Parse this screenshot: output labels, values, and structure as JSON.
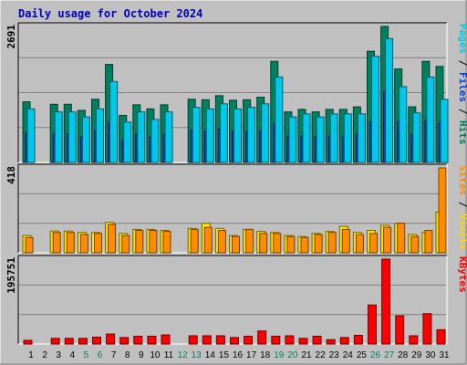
{
  "chart_data": {
    "type": "bar",
    "title": "Daily usage for October 2024",
    "days": [
      "1",
      "2",
      "3",
      "4",
      "5",
      "6",
      "7",
      "8",
      "9",
      "10",
      "11",
      "12",
      "13",
      "14",
      "15",
      "16",
      "17",
      "18",
      "19",
      "20",
      "21",
      "22",
      "23",
      "24",
      "25",
      "26",
      "27",
      "28",
      "29",
      "30",
      "31"
    ],
    "weekend_days": [
      "5",
      "6",
      "12",
      "13",
      "19",
      "20",
      "26",
      "27"
    ],
    "panels": [
      {
        "id": "top",
        "axis_max_label": "2691",
        "ylim": [
          0,
          2691
        ],
        "side_labels": [
          {
            "text": "Pages",
            "color": "#00c8e8"
          },
          {
            "text": " / ",
            "color": "#000000"
          },
          {
            "text": "Files",
            "color": "#0040d0"
          },
          {
            "text": " / ",
            "color": "#000000"
          },
          {
            "text": "Hits",
            "color": "#008060"
          }
        ],
        "series": [
          {
            "name": "Hits",
            "color": "#008060",
            "values": [
              1200,
              0,
              1150,
              1150,
              1030,
              1250,
              1940,
              930,
              1140,
              1060,
              1140,
              0,
              1250,
              1240,
              1320,
              1230,
              1240,
              1290,
              2000,
              1000,
              1050,
              1000,
              1050,
              1050,
              1100,
              2200,
              2691,
              1850,
              1100,
              2000,
              1900
            ]
          },
          {
            "name": "Files",
            "color": "#0040d0",
            "values": [
              580,
              0,
              560,
              560,
              500,
              640,
              800,
              450,
              560,
              500,
              560,
              0,
              640,
              620,
              660,
              620,
              620,
              640,
              760,
              520,
              520,
              500,
              520,
              520,
              560,
              800,
              1400,
              800,
              560,
              820,
              780
            ]
          },
          {
            "name": "Pages",
            "color": "#00c8e8",
            "values": [
              1060,
              0,
              1000,
              1000,
              900,
              1060,
              1600,
              800,
              1000,
              850,
              1000,
              0,
              1090,
              1060,
              1160,
              1060,
              1090,
              1160,
              1690,
              900,
              960,
              900,
              960,
              960,
              960,
              2100,
              2450,
              1500,
              980,
              1690,
              1250
            ]
          }
        ]
      },
      {
        "id": "mid",
        "axis_max_label": "418",
        "ylim": [
          0,
          418
        ],
        "side_labels": [
          {
            "text": "Sites",
            "color": "#ff8c00"
          },
          {
            "text": " / ",
            "color": "#000000"
          },
          {
            "text": "Visits",
            "color": "#ffd700"
          }
        ],
        "series": [
          {
            "name": "Visits",
            "color": "#ffe400",
            "values": [
              85,
              0,
              107,
              107,
              100,
              100,
              150,
              95,
              115,
              115,
              110,
              0,
              120,
              145,
              120,
              85,
              115,
              105,
              100,
              85,
              80,
              95,
              105,
              130,
              100,
              110,
              135,
              145,
              90,
              100,
              200
            ]
          },
          {
            "name": "Sites",
            "color": "#ff8c00",
            "values": [
              75,
              0,
              100,
              100,
              90,
              95,
              140,
              85,
              110,
              110,
              105,
              0,
              115,
              125,
              110,
              80,
              115,
              95,
              95,
              80,
              75,
              90,
              100,
              115,
              90,
              95,
              125,
              145,
              80,
              110,
              418
            ]
          }
        ]
      },
      {
        "id": "bottom",
        "axis_max_label": "195751",
        "ylim": [
          0,
          195751
        ],
        "side_labels": [
          {
            "text": "KBytes",
            "color": "#ff0000"
          }
        ],
        "series": [
          {
            "name": "KBytes",
            "color": "#ff0000",
            "values": [
              8500,
              0,
              13000,
              13000,
              13000,
              16000,
              23000,
              15000,
              18000,
              18000,
              21000,
              0,
              19000,
              19000,
              19000,
              15000,
              18000,
              30000,
              18000,
              19000,
              13000,
              18000,
              10000,
              15000,
              20000,
              90000,
              195751,
              65000,
              19000,
              70000,
              33000
            ]
          }
        ]
      }
    ]
  }
}
